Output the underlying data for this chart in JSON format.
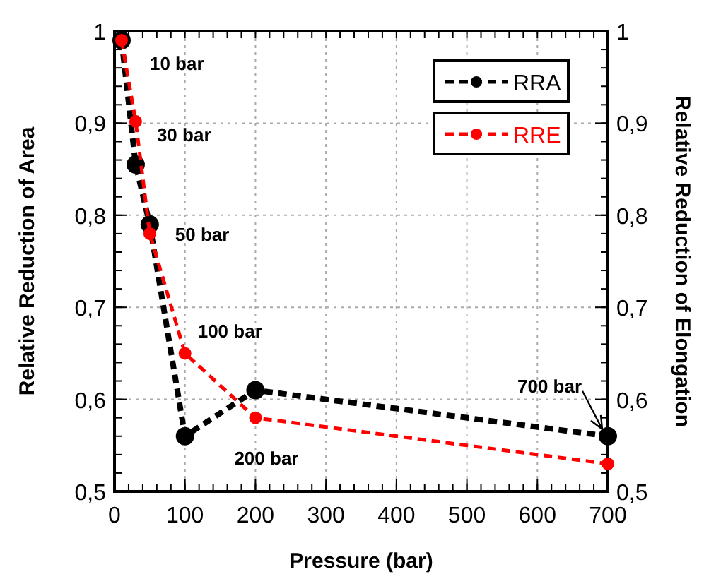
{
  "chart_data": {
    "type": "line",
    "xlabel": "Pressure (bar)",
    "ylabel": "Relative Reduction of Area",
    "y2label": "Relative Reduction of Elongation",
    "xlim": [
      0,
      700
    ],
    "xticks": [
      0,
      100,
      200,
      300,
      400,
      500,
      600,
      700
    ],
    "ylim": [
      0.5,
      1
    ],
    "yticks": [
      {
        "value": 0.5,
        "label": "0,5"
      },
      {
        "value": 0.6,
        "label": "0,6"
      },
      {
        "value": 0.7,
        "label": "0,7"
      },
      {
        "value": 0.8,
        "label": "0,8"
      },
      {
        "value": 0.9,
        "label": "0,9"
      },
      {
        "value": 1,
        "label": "1"
      }
    ],
    "y2lim": [
      0.5,
      1
    ],
    "y2ticks": [
      {
        "value": 0.5,
        "label": "0,5"
      },
      {
        "value": 0.6,
        "label": "0,6"
      },
      {
        "value": 0.7,
        "label": "0,7"
      },
      {
        "value": 0.8,
        "label": "0,8"
      },
      {
        "value": 0.9,
        "label": "0,9"
      },
      {
        "value": 1,
        "label": "1"
      }
    ],
    "series": [
      {
        "name": "RRA",
        "color": "#000000",
        "x": [
          10,
          30,
          50,
          100,
          200,
          700
        ],
        "values": [
          0.99,
          0.855,
          0.79,
          0.56,
          0.61,
          0.56
        ]
      },
      {
        "name": "RRE",
        "color": "#ff0000",
        "axis": "y2",
        "x": [
          10,
          30,
          50,
          100,
          200,
          700
        ],
        "values": [
          0.99,
          0.902,
          0.78,
          0.65,
          0.58,
          0.53
        ]
      }
    ],
    "annotations": [
      {
        "text": "10 bar",
        "x": 10,
        "y": 0.99
      },
      {
        "text": "30 bar",
        "x": 30,
        "y": 0.902
      },
      {
        "text": "50 bar",
        "x": 50,
        "y": 0.78
      },
      {
        "text": "100 bar",
        "x": 100,
        "y": 0.65
      },
      {
        "text": "200 bar",
        "x": 200,
        "y": 0.58
      },
      {
        "text": "700 bar",
        "x": 700,
        "y": 0.56
      }
    ],
    "grid": true,
    "legend": "top right",
    "marker": "circle",
    "line_style": "dashed"
  }
}
